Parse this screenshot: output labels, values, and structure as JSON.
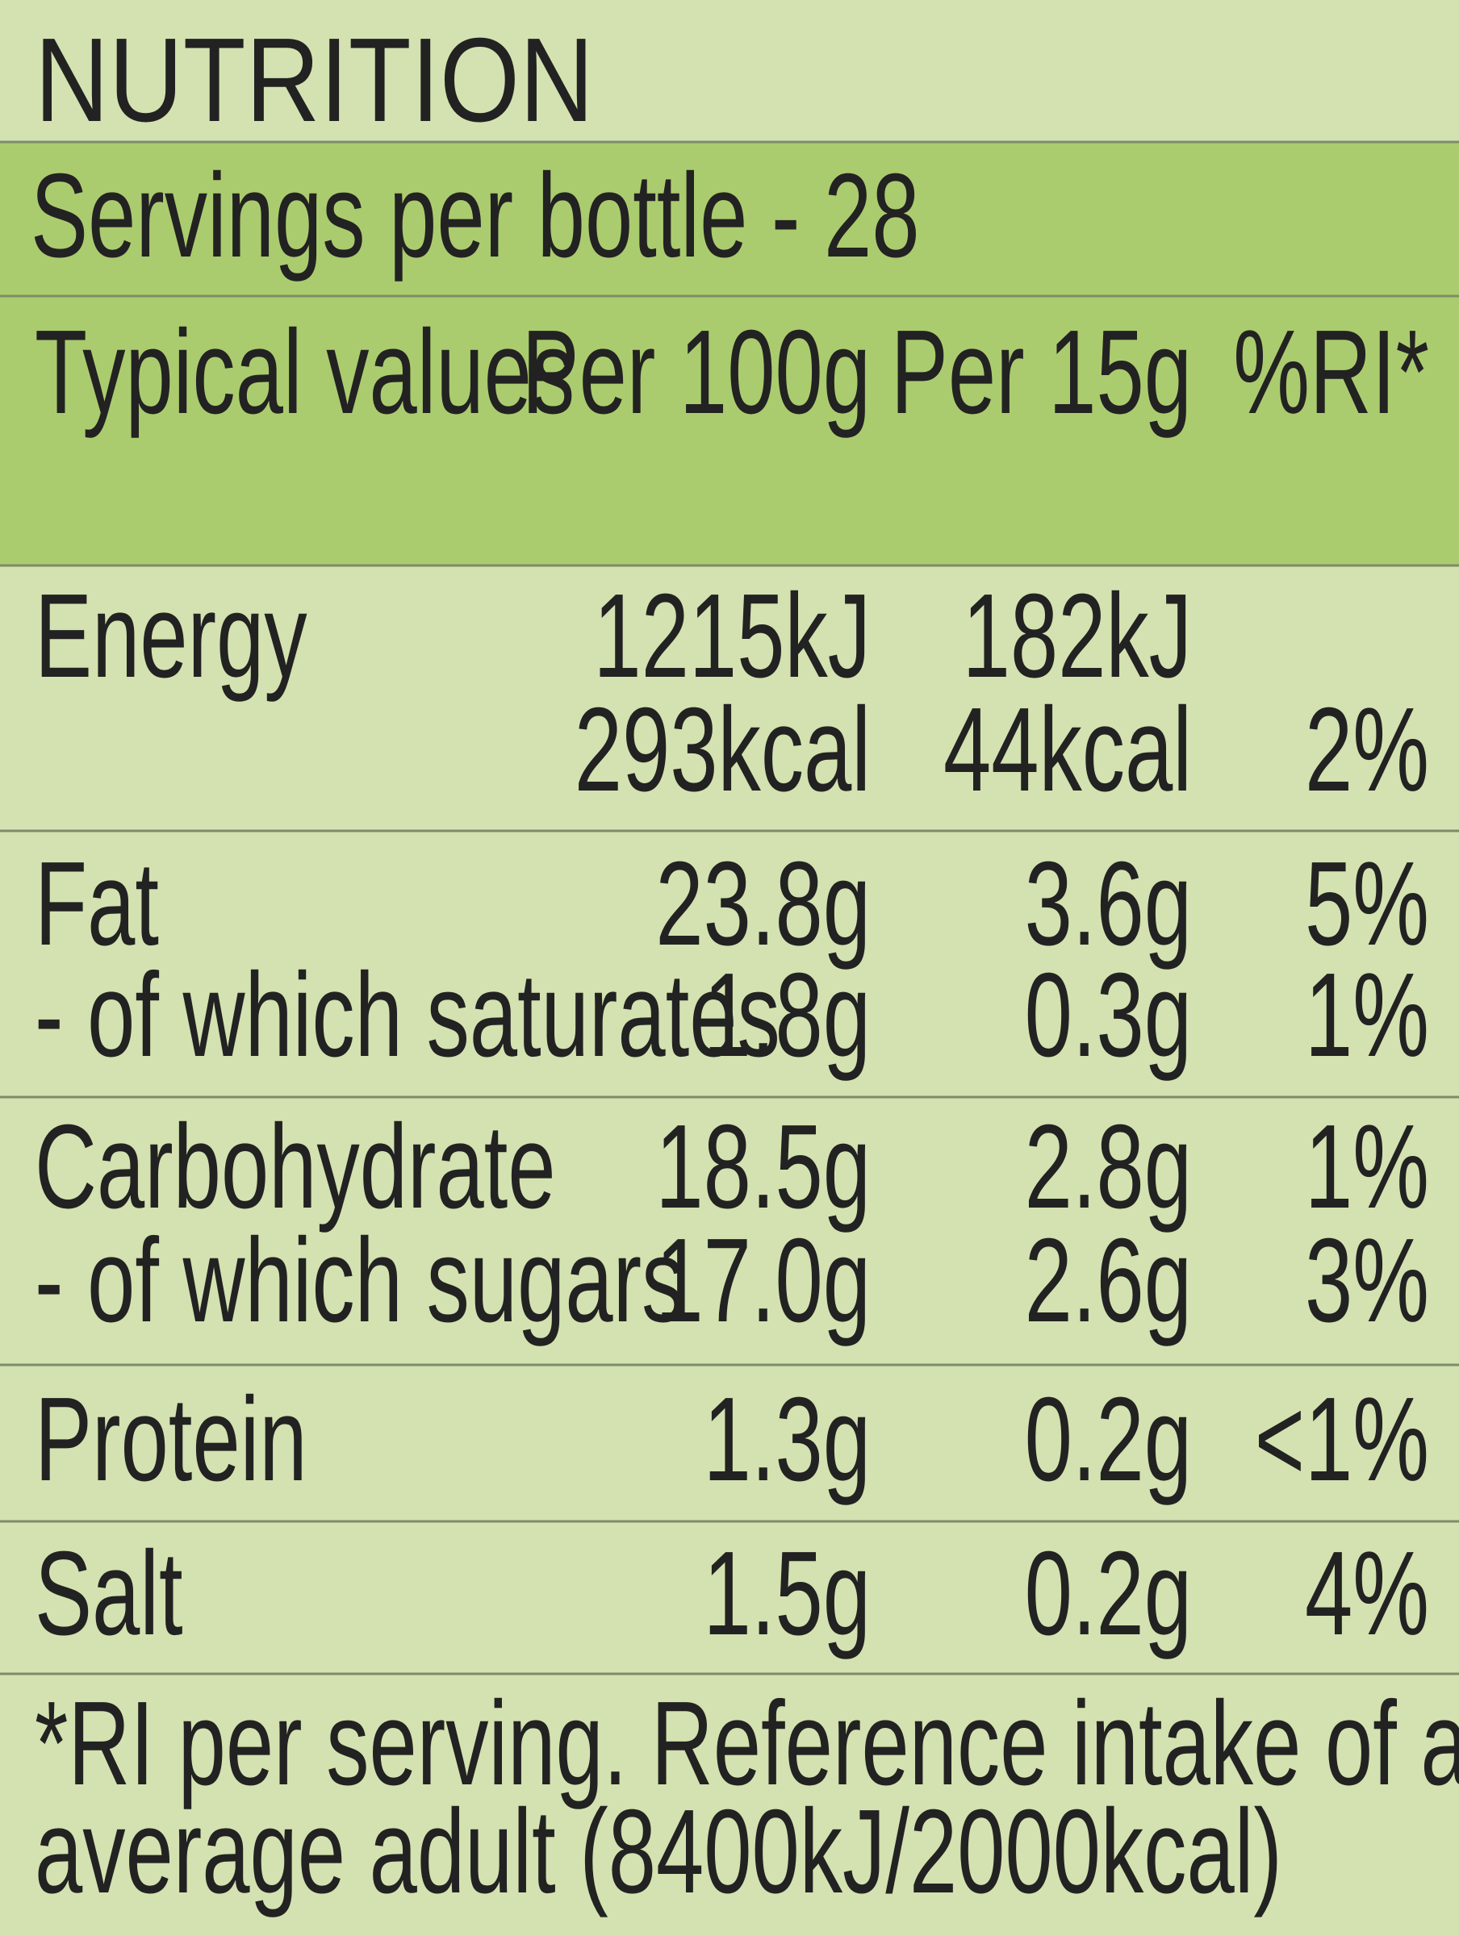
{
  "label": {
    "title": "NUTRITION",
    "servings": "Servings per bottle - 28",
    "header": {
      "label": "Typical values",
      "per_100g": "Per 100g",
      "per_15g": "Per 15g",
      "ri": "%RI*"
    },
    "sections": [
      [
        {
          "label": "Energy",
          "per_100g": "1215kJ",
          "per_15g": "182kJ"
        },
        {
          "per_100g": "293kcal",
          "per_15g": "44kcal",
          "ri": "2%"
        }
      ],
      [
        {
          "label": "Fat",
          "per_100g": "23.8g",
          "per_15g": "3.6g",
          "ri": "5%"
        },
        {
          "label": "- of which saturates",
          "per_100g": "1.8g",
          "per_15g": "0.3g",
          "ri": "1%"
        }
      ],
      [
        {
          "label": "Carbohydrate",
          "per_100g": "18.5g",
          "per_15g": "2.8g",
          "ri": "1%"
        },
        {
          "label": "- of which sugars",
          "per_100g": "17.0g",
          "per_15g": "2.6g",
          "ri": "3%"
        }
      ],
      [
        {
          "label": "Protein",
          "per_100g": "1.3g",
          "per_15g": "0.2g",
          "ri": "<1%"
        }
      ],
      [
        {
          "label": "Salt",
          "per_100g": "1.5g",
          "per_15g": "0.2g",
          "ri": "4%"
        }
      ]
    ],
    "footnote": [
      "*RI per serving. Reference intake of an",
      "average adult (8400kJ/2000kcal)"
    ]
  }
}
